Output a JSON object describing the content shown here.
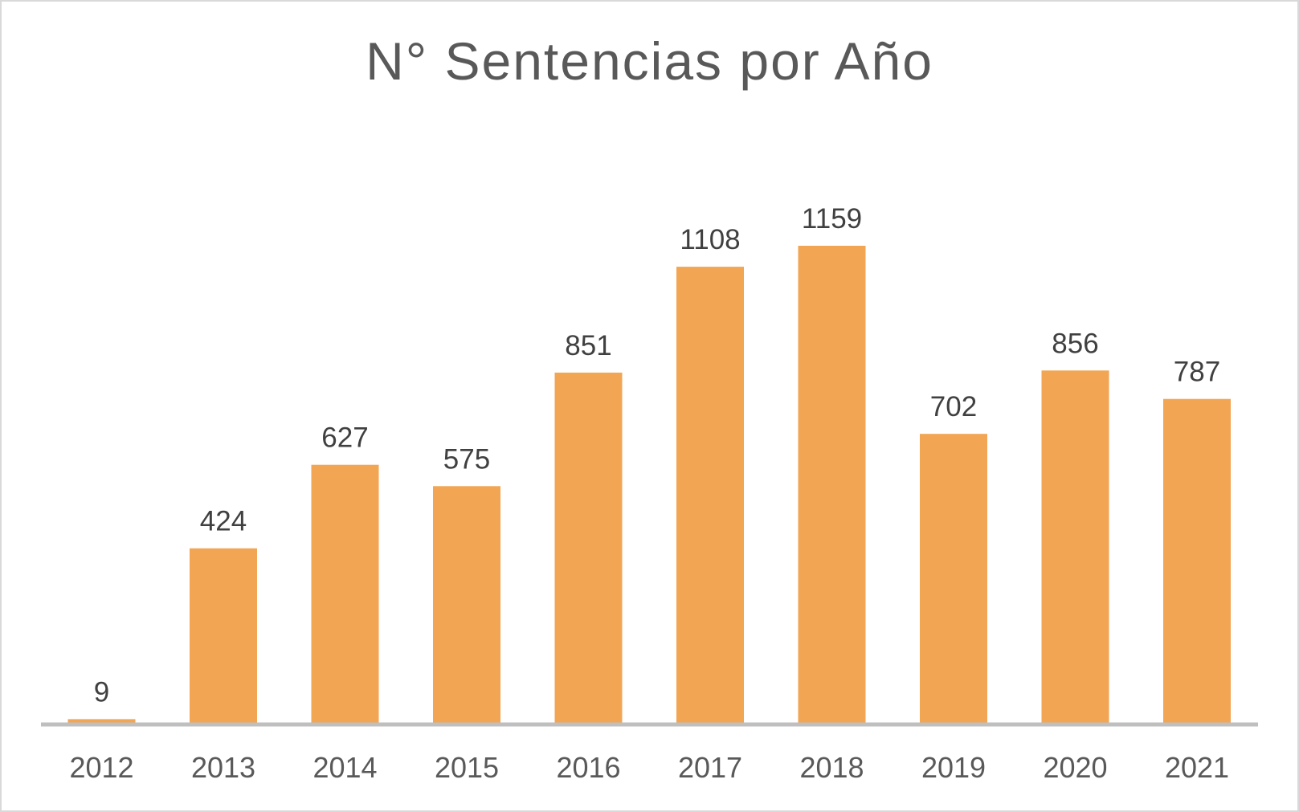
{
  "chart_data": {
    "type": "bar",
    "title": "N° Sentencias por Año",
    "categories": [
      "2012",
      "2013",
      "2014",
      "2015",
      "2016",
      "2017",
      "2018",
      "2019",
      "2020",
      "2021"
    ],
    "values": [
      9,
      424,
      627,
      575,
      851,
      1108,
      1159,
      702,
      856,
      787
    ],
    "xlabel": "",
    "ylabel": "",
    "ylim": [
      0,
      1159
    ],
    "grid": false,
    "legend": "none",
    "bar_color": "#F2A553",
    "axis_color": "#BFBFBF"
  }
}
